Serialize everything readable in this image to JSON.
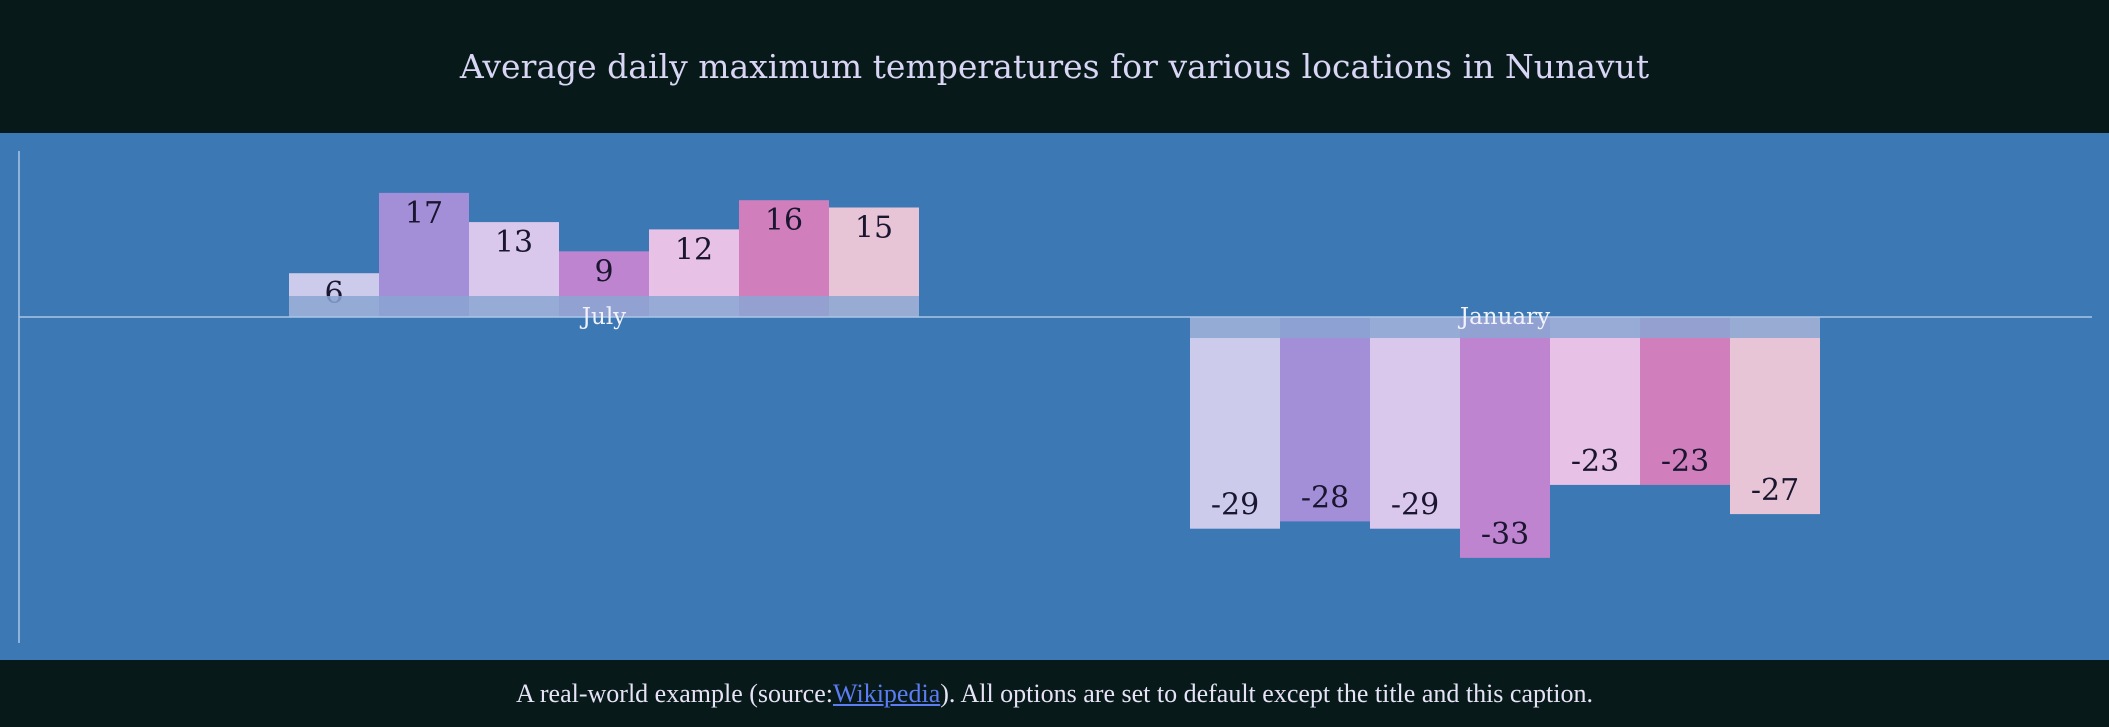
{
  "title": "Average daily maximum temperatures for various locations in Nunavut",
  "caption": {
    "prefix": "A real-world example (source: ",
    "link_text": "Wikipedia",
    "suffix": "). All options are set to default except the title and this caption."
  },
  "chart_data": {
    "type": "bar",
    "title": "Average daily maximum temperatures for various locations in Nunavut",
    "xlabel": "",
    "ylabel": "",
    "ylim": [
      -33,
      17
    ],
    "grid": false,
    "categories": [
      "July",
      "January"
    ],
    "series": [
      {
        "values": [
          6,
          -29
        ]
      },
      {
        "values": [
          17,
          -28
        ]
      },
      {
        "values": [
          13,
          -29
        ]
      },
      {
        "values": [
          9,
          -33
        ]
      },
      {
        "values": [
          12,
          -23
        ]
      },
      {
        "values": [
          16,
          -23
        ]
      },
      {
        "values": [
          15,
          -27
        ]
      }
    ],
    "colors": [
      "#cccbec",
      "#a38fd8",
      "#dac8ec",
      "#be84d0",
      "#e8c2e6",
      "#d07fbc",
      "#e8c5d6"
    ],
    "label_band_color": "#8aa6d2",
    "axis_color": "#a9c6e6"
  }
}
